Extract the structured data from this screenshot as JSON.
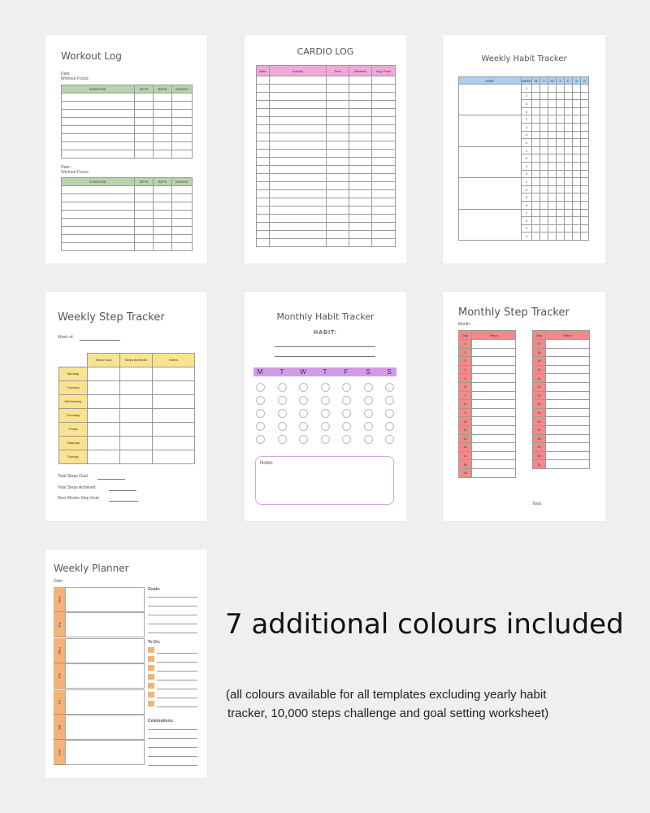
{
  "workout": {
    "title": "Workout Log",
    "date_label": "Date:",
    "focus_label": "Workout Focus:",
    "columns": [
      "EXERCISE",
      "SETS",
      "REPS",
      "WEIGHT"
    ]
  },
  "cardio": {
    "title": "CARDIO LOG",
    "columns": [
      "Date",
      "Activity",
      "Time",
      "Distance",
      "Avg. Pace"
    ]
  },
  "weekly_habit": {
    "title": "Weekly Habit Tracker",
    "columns": [
      "HABIT",
      "WEEK",
      "M",
      "T",
      "W",
      "T",
      "F",
      "S",
      "S"
    ],
    "week_numbers": [
      "1",
      "2",
      "3",
      "4"
    ]
  },
  "weekly_step": {
    "title": "Weekly Step Tracker",
    "week_of_label": "Week of:",
    "columns": [
      "Steps Goal",
      "Steps Achieved",
      "Notes"
    ],
    "days": [
      "Monday",
      "Tuesday",
      "Wednesday",
      "Thursday",
      "Friday",
      "Saturday",
      "Sunday"
    ],
    "total_goal_label": "Total Steps Goal:",
    "total_achieved_label": "Total Steps Achieved:",
    "next_goal_label": "Next Weeks Step Goal:"
  },
  "monthly_habit": {
    "title": "Monthly Habit Tracker",
    "habit_label": "HABIT:",
    "days": [
      "M",
      "T",
      "W",
      "T",
      "F",
      "S",
      "S"
    ],
    "notes_label": "Notes"
  },
  "monthly_step": {
    "title": "Monthly Step Tracker",
    "month_label": "Month:",
    "day_header": "Day",
    "steps_header": "Steps",
    "days_left": [
      "1",
      "2",
      "3",
      "4",
      "5",
      "6",
      "7",
      "8",
      "9",
      "10",
      "11",
      "12",
      "13",
      "14",
      "15",
      "16"
    ],
    "days_right": [
      "17",
      "18",
      "19",
      "20",
      "21",
      "22",
      "23",
      "24",
      "25",
      "26",
      "27",
      "28",
      "29",
      "30",
      "31"
    ],
    "total_label": "Total:"
  },
  "weekly_planner": {
    "title": "Weekly Planner",
    "date_label": "Date:",
    "days": [
      "Mon",
      "Tue",
      "Wed",
      "Thu",
      "Fri",
      "Sat",
      "Sun"
    ],
    "goals_label": "Goals:",
    "todo_label": "To Do:",
    "celebrations_label": "Celebrations:"
  },
  "caption": {
    "heading": "7 additional colours included",
    "line1": "(all colours available for all templates excluding yearly habit",
    "line2": "tracker, 10,000 steps challenge and goal setting worksheet)"
  },
  "colors": {
    "background": "#efefef",
    "workout_green": "#b9d3ac",
    "cardio_pink": "#f3a7dc",
    "habit_blue": "#a9d0f1",
    "step_yellow": "#f9e38f",
    "monthly_purple": "#d39be6",
    "monthly_step_red": "#f28a8a",
    "planner_orange": "#f2b27a"
  }
}
